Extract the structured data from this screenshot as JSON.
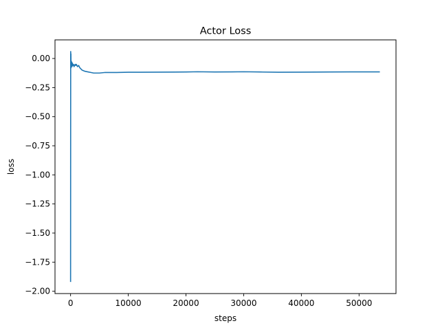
{
  "chart_data": {
    "type": "line",
    "title": "Actor Loss",
    "xlabel": "steps",
    "ylabel": "loss",
    "xlim": [
      -2700,
      56400
    ],
    "ylim": [
      -2.02,
      0.16
    ],
    "x_ticks": [
      0,
      10000,
      20000,
      30000,
      40000,
      50000
    ],
    "y_ticks": [
      0.0,
      -0.25,
      -0.5,
      -0.75,
      -1.0,
      -1.25,
      -1.5,
      -1.75,
      -2.0
    ],
    "x_tick_labels": [
      "0",
      "10000",
      "20000",
      "30000",
      "40000",
      "50000"
    ],
    "y_tick_labels": [
      "0.00",
      "−0.25",
      "−0.50",
      "−0.75",
      "−1.00",
      "−1.25",
      "−1.50",
      "−1.75",
      "−2.00"
    ],
    "grid": false,
    "series_color": "#1f77b4",
    "series": [
      {
        "x": [
          0,
          20,
          40,
          60,
          80,
          100,
          150,
          200,
          250,
          300,
          400,
          500,
          600,
          700,
          800,
          900,
          1000,
          1200,
          1400,
          1600,
          1800,
          2000,
          2500,
          3000,
          3500,
          4000,
          5000,
          6000,
          8000,
          10000,
          12000,
          15000,
          20000,
          22000,
          25000,
          28000,
          30000,
          33000,
          36000,
          40000,
          45000,
          50000,
          53600
        ],
        "y": [
          -1.92,
          0.06,
          -0.05,
          0.04,
          -0.08,
          -0.02,
          -0.06,
          -0.03,
          -0.07,
          -0.04,
          -0.06,
          -0.05,
          -0.07,
          -0.06,
          -0.05,
          -0.06,
          -0.05,
          -0.07,
          -0.06,
          -0.08,
          -0.09,
          -0.1,
          -0.11,
          -0.115,
          -0.12,
          -0.125,
          -0.125,
          -0.12,
          -0.12,
          -0.118,
          -0.118,
          -0.117,
          -0.116,
          -0.114,
          -0.116,
          -0.115,
          -0.114,
          -0.116,
          -0.118,
          -0.117,
          -0.116,
          -0.115,
          -0.115
        ]
      }
    ]
  }
}
